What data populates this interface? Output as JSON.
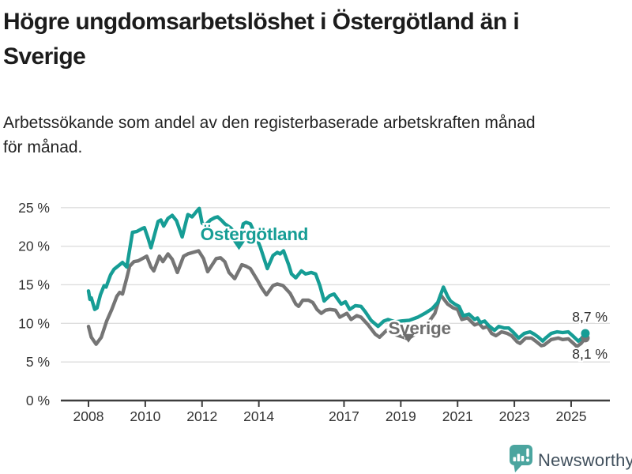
{
  "header": {
    "title_lines": [
      "Högre ungdomsarbetslöshet i Östergötland än i",
      "Sverige"
    ],
    "subtitle_lines": [
      "Arbetssökande som andel av den registerbaserade arbetskraften månad",
      "för månad."
    ]
  },
  "footer": {
    "brand": "Newsworthy"
  },
  "colors": {
    "ostergotland": "#169d95",
    "sverige": "#757575",
    "grid": "#dedede",
    "axis": "#3d3d3d",
    "tick_text": "#333333",
    "end_label_text": "#2b2b2b",
    "title": "#1c1c1c",
    "brand_icon": "#4ba59f",
    "brand_text": "#41505d"
  },
  "chart_data": {
    "type": "line",
    "unit": "%",
    "ylim": [
      0,
      25
    ],
    "xlim": [
      2008,
      2025.6
    ],
    "grid": "horizontal",
    "yticks": [
      0,
      5,
      10,
      15,
      20,
      25
    ],
    "ytick_labels": [
      "0 %",
      "5 %",
      "10 %",
      "15 %",
      "20 %",
      "25 %"
    ],
    "xticks": [
      2008,
      2010,
      2012,
      2014,
      2017,
      2019,
      2021,
      2023,
      2025
    ],
    "series": [
      {
        "name": "Sverige",
        "color": "#757575",
        "end_label": "8,1 %",
        "end_label_pos": "below",
        "points": [
          [
            2008.0,
            9.6
          ],
          [
            2008.1,
            8.2
          ],
          [
            2008.27,
            7.3
          ],
          [
            2008.45,
            8.2
          ],
          [
            2008.64,
            10.3
          ],
          [
            2008.82,
            11.8
          ],
          [
            2009.0,
            13.5
          ],
          [
            2009.1,
            14.0
          ],
          [
            2009.2,
            13.8
          ],
          [
            2009.35,
            15.9
          ],
          [
            2009.45,
            17.4
          ],
          [
            2009.6,
            18.0
          ],
          [
            2009.75,
            18.1
          ],
          [
            2009.95,
            18.5
          ],
          [
            2010.05,
            18.7
          ],
          [
            2010.2,
            17.3
          ],
          [
            2010.3,
            16.8
          ],
          [
            2010.5,
            18.7
          ],
          [
            2010.62,
            18.0
          ],
          [
            2010.8,
            19.0
          ],
          [
            2010.95,
            18.3
          ],
          [
            2011.13,
            16.6
          ],
          [
            2011.35,
            18.7
          ],
          [
            2011.5,
            19.0
          ],
          [
            2011.68,
            19.2
          ],
          [
            2011.88,
            19.4
          ],
          [
            2012.05,
            18.4
          ],
          [
            2012.2,
            16.7
          ],
          [
            2012.5,
            18.4
          ],
          [
            2012.65,
            18.5
          ],
          [
            2012.8,
            18.0
          ],
          [
            2012.95,
            16.6
          ],
          [
            2013.15,
            15.8
          ],
          [
            2013.4,
            17.6
          ],
          [
            2013.55,
            17.4
          ],
          [
            2013.7,
            17.1
          ],
          [
            2013.95,
            15.6
          ],
          [
            2014.1,
            14.6
          ],
          [
            2014.27,
            13.7
          ],
          [
            2014.5,
            14.9
          ],
          [
            2014.65,
            15.1
          ],
          [
            2014.85,
            14.9
          ],
          [
            2015.1,
            13.9
          ],
          [
            2015.3,
            12.5
          ],
          [
            2015.4,
            12.2
          ],
          [
            2015.55,
            13.0
          ],
          [
            2015.75,
            13.0
          ],
          [
            2015.9,
            12.7
          ],
          [
            2016.05,
            11.8
          ],
          [
            2016.2,
            11.3
          ],
          [
            2016.35,
            11.7
          ],
          [
            2016.5,
            11.8
          ],
          [
            2016.7,
            11.7
          ],
          [
            2016.85,
            10.8
          ],
          [
            2017.1,
            11.3
          ],
          [
            2017.25,
            10.5
          ],
          [
            2017.45,
            11.0
          ],
          [
            2017.6,
            10.8
          ],
          [
            2017.85,
            9.8
          ],
          [
            2018.1,
            8.6
          ],
          [
            2018.25,
            8.2
          ],
          [
            2018.5,
            9.1
          ],
          [
            2018.6,
            8.9
          ],
          [
            2018.85,
            8.5
          ],
          [
            2019.1,
            8.2
          ],
          [
            2019.25,
            8.0
          ],
          [
            2019.5,
            8.6
          ],
          [
            2019.75,
            9.2
          ],
          [
            2019.95,
            10.0
          ],
          [
            2020.2,
            11.3
          ],
          [
            2020.4,
            13.7
          ],
          [
            2020.65,
            12.5
          ],
          [
            2020.85,
            12.0
          ],
          [
            2021.0,
            11.8
          ],
          [
            2021.15,
            10.5
          ],
          [
            2021.35,
            10.7
          ],
          [
            2021.6,
            9.8
          ],
          [
            2021.75,
            10.0
          ],
          [
            2021.9,
            9.4
          ],
          [
            2022.05,
            9.6
          ],
          [
            2022.2,
            8.7
          ],
          [
            2022.35,
            8.4
          ],
          [
            2022.55,
            8.9
          ],
          [
            2022.75,
            8.7
          ],
          [
            2022.9,
            8.4
          ],
          [
            2023.1,
            7.6
          ],
          [
            2023.2,
            7.4
          ],
          [
            2023.4,
            8.1
          ],
          [
            2023.6,
            8.1
          ],
          [
            2023.75,
            7.7
          ],
          [
            2023.95,
            7.1
          ],
          [
            2024.05,
            7.2
          ],
          [
            2024.3,
            7.9
          ],
          [
            2024.55,
            8.1
          ],
          [
            2024.7,
            7.9
          ],
          [
            2024.9,
            8.0
          ],
          [
            2025.05,
            7.5
          ],
          [
            2025.2,
            7.0
          ],
          [
            2025.35,
            7.4
          ],
          [
            2025.5,
            8.1
          ]
        ]
      },
      {
        "name": "Östergötland",
        "color": "#169d95",
        "end_label": "8,7 %",
        "end_label_pos": "above",
        "points": [
          [
            2008.0,
            14.2
          ],
          [
            2008.05,
            13.1
          ],
          [
            2008.1,
            13.3
          ],
          [
            2008.22,
            11.8
          ],
          [
            2008.3,
            12.0
          ],
          [
            2008.42,
            13.7
          ],
          [
            2008.55,
            14.9
          ],
          [
            2008.62,
            14.7
          ],
          [
            2008.78,
            16.3
          ],
          [
            2008.9,
            17.0
          ],
          [
            2009.1,
            17.6
          ],
          [
            2009.2,
            17.9
          ],
          [
            2009.35,
            17.3
          ],
          [
            2009.55,
            21.8
          ],
          [
            2009.7,
            21.9
          ],
          [
            2009.9,
            22.3
          ],
          [
            2009.97,
            22.4
          ],
          [
            2010.1,
            21.0
          ],
          [
            2010.2,
            19.8
          ],
          [
            2010.45,
            23.2
          ],
          [
            2010.55,
            23.4
          ],
          [
            2010.65,
            22.6
          ],
          [
            2010.8,
            23.6
          ],
          [
            2010.95,
            24.0
          ],
          [
            2011.1,
            23.3
          ],
          [
            2011.3,
            21.2
          ],
          [
            2011.5,
            24.1
          ],
          [
            2011.65,
            23.8
          ],
          [
            2011.78,
            24.4
          ],
          [
            2011.9,
            24.9
          ],
          [
            2012.0,
            23.0
          ],
          [
            2012.1,
            22.7
          ],
          [
            2012.3,
            23.4
          ],
          [
            2012.45,
            23.7
          ],
          [
            2012.55,
            23.8
          ],
          [
            2012.7,
            23.3
          ],
          [
            2012.8,
            22.9
          ],
          [
            2013.0,
            22.4
          ],
          [
            2013.15,
            21.8
          ],
          [
            2013.3,
            20.4
          ],
          [
            2013.45,
            22.9
          ],
          [
            2013.55,
            23.1
          ],
          [
            2013.7,
            22.9
          ],
          [
            2013.85,
            21.7
          ],
          [
            2014.05,
            19.9
          ],
          [
            2014.3,
            17.1
          ],
          [
            2014.5,
            18.8
          ],
          [
            2014.65,
            19.2
          ],
          [
            2014.75,
            19.0
          ],
          [
            2014.87,
            19.4
          ],
          [
            2015.05,
            17.6
          ],
          [
            2015.15,
            16.4
          ],
          [
            2015.3,
            15.9
          ],
          [
            2015.5,
            16.8
          ],
          [
            2015.65,
            16.4
          ],
          [
            2015.85,
            16.6
          ],
          [
            2016.0,
            16.4
          ],
          [
            2016.15,
            14.9
          ],
          [
            2016.3,
            12.9
          ],
          [
            2016.5,
            13.6
          ],
          [
            2016.65,
            13.8
          ],
          [
            2016.9,
            12.5
          ],
          [
            2017.05,
            12.8
          ],
          [
            2017.2,
            11.8
          ],
          [
            2017.4,
            12.3
          ],
          [
            2017.6,
            12.2
          ],
          [
            2017.75,
            11.5
          ],
          [
            2017.95,
            10.4
          ],
          [
            2018.2,
            9.6
          ],
          [
            2018.4,
            10.3
          ],
          [
            2018.55,
            10.5
          ],
          [
            2018.8,
            10.2
          ],
          [
            2019.0,
            10.3
          ],
          [
            2019.3,
            10.4
          ],
          [
            2019.6,
            10.8
          ],
          [
            2019.85,
            11.3
          ],
          [
            2020.1,
            11.9
          ],
          [
            2020.3,
            12.7
          ],
          [
            2020.5,
            14.7
          ],
          [
            2020.65,
            13.5
          ],
          [
            2020.75,
            12.9
          ],
          [
            2020.9,
            12.5
          ],
          [
            2021.05,
            12.2
          ],
          [
            2021.2,
            11.0
          ],
          [
            2021.4,
            11.2
          ],
          [
            2021.6,
            10.5
          ],
          [
            2021.7,
            10.7
          ],
          [
            2021.8,
            10.1
          ],
          [
            2021.95,
            10.3
          ],
          [
            2022.1,
            9.7
          ],
          [
            2022.3,
            9.1
          ],
          [
            2022.45,
            9.6
          ],
          [
            2022.65,
            9.4
          ],
          [
            2022.8,
            9.4
          ],
          [
            2022.95,
            8.9
          ],
          [
            2023.15,
            8.1
          ],
          [
            2023.35,
            8.7
          ],
          [
            2023.55,
            8.9
          ],
          [
            2023.7,
            8.6
          ],
          [
            2023.85,
            8.2
          ],
          [
            2024.0,
            7.7
          ],
          [
            2024.1,
            8.1
          ],
          [
            2024.3,
            8.7
          ],
          [
            2024.5,
            8.9
          ],
          [
            2024.7,
            8.8
          ],
          [
            2024.9,
            8.9
          ],
          [
            2025.05,
            8.4
          ],
          [
            2025.25,
            7.7
          ],
          [
            2025.35,
            8.0
          ],
          [
            2025.5,
            8.7
          ]
        ]
      }
    ],
    "annotations": [
      {
        "id": "ostergotland-label",
        "kind": "label",
        "text": "Östergötland",
        "year": 2013.84,
        "value": 20.8,
        "color": "#169d95"
      },
      {
        "id": "ostergotland-arrow",
        "kind": "arrow",
        "year": 2013.3,
        "value": 19.5,
        "color": "#169d95"
      },
      {
        "id": "sverige-label",
        "kind": "label",
        "text": "Sverige",
        "year": 2019.66,
        "value": 8.6,
        "color": "#6e6e6e"
      },
      {
        "id": "sverige-arrow",
        "kind": "arrow",
        "year": 2019.27,
        "value": 7.5,
        "color": "#6e6e6e"
      }
    ]
  }
}
